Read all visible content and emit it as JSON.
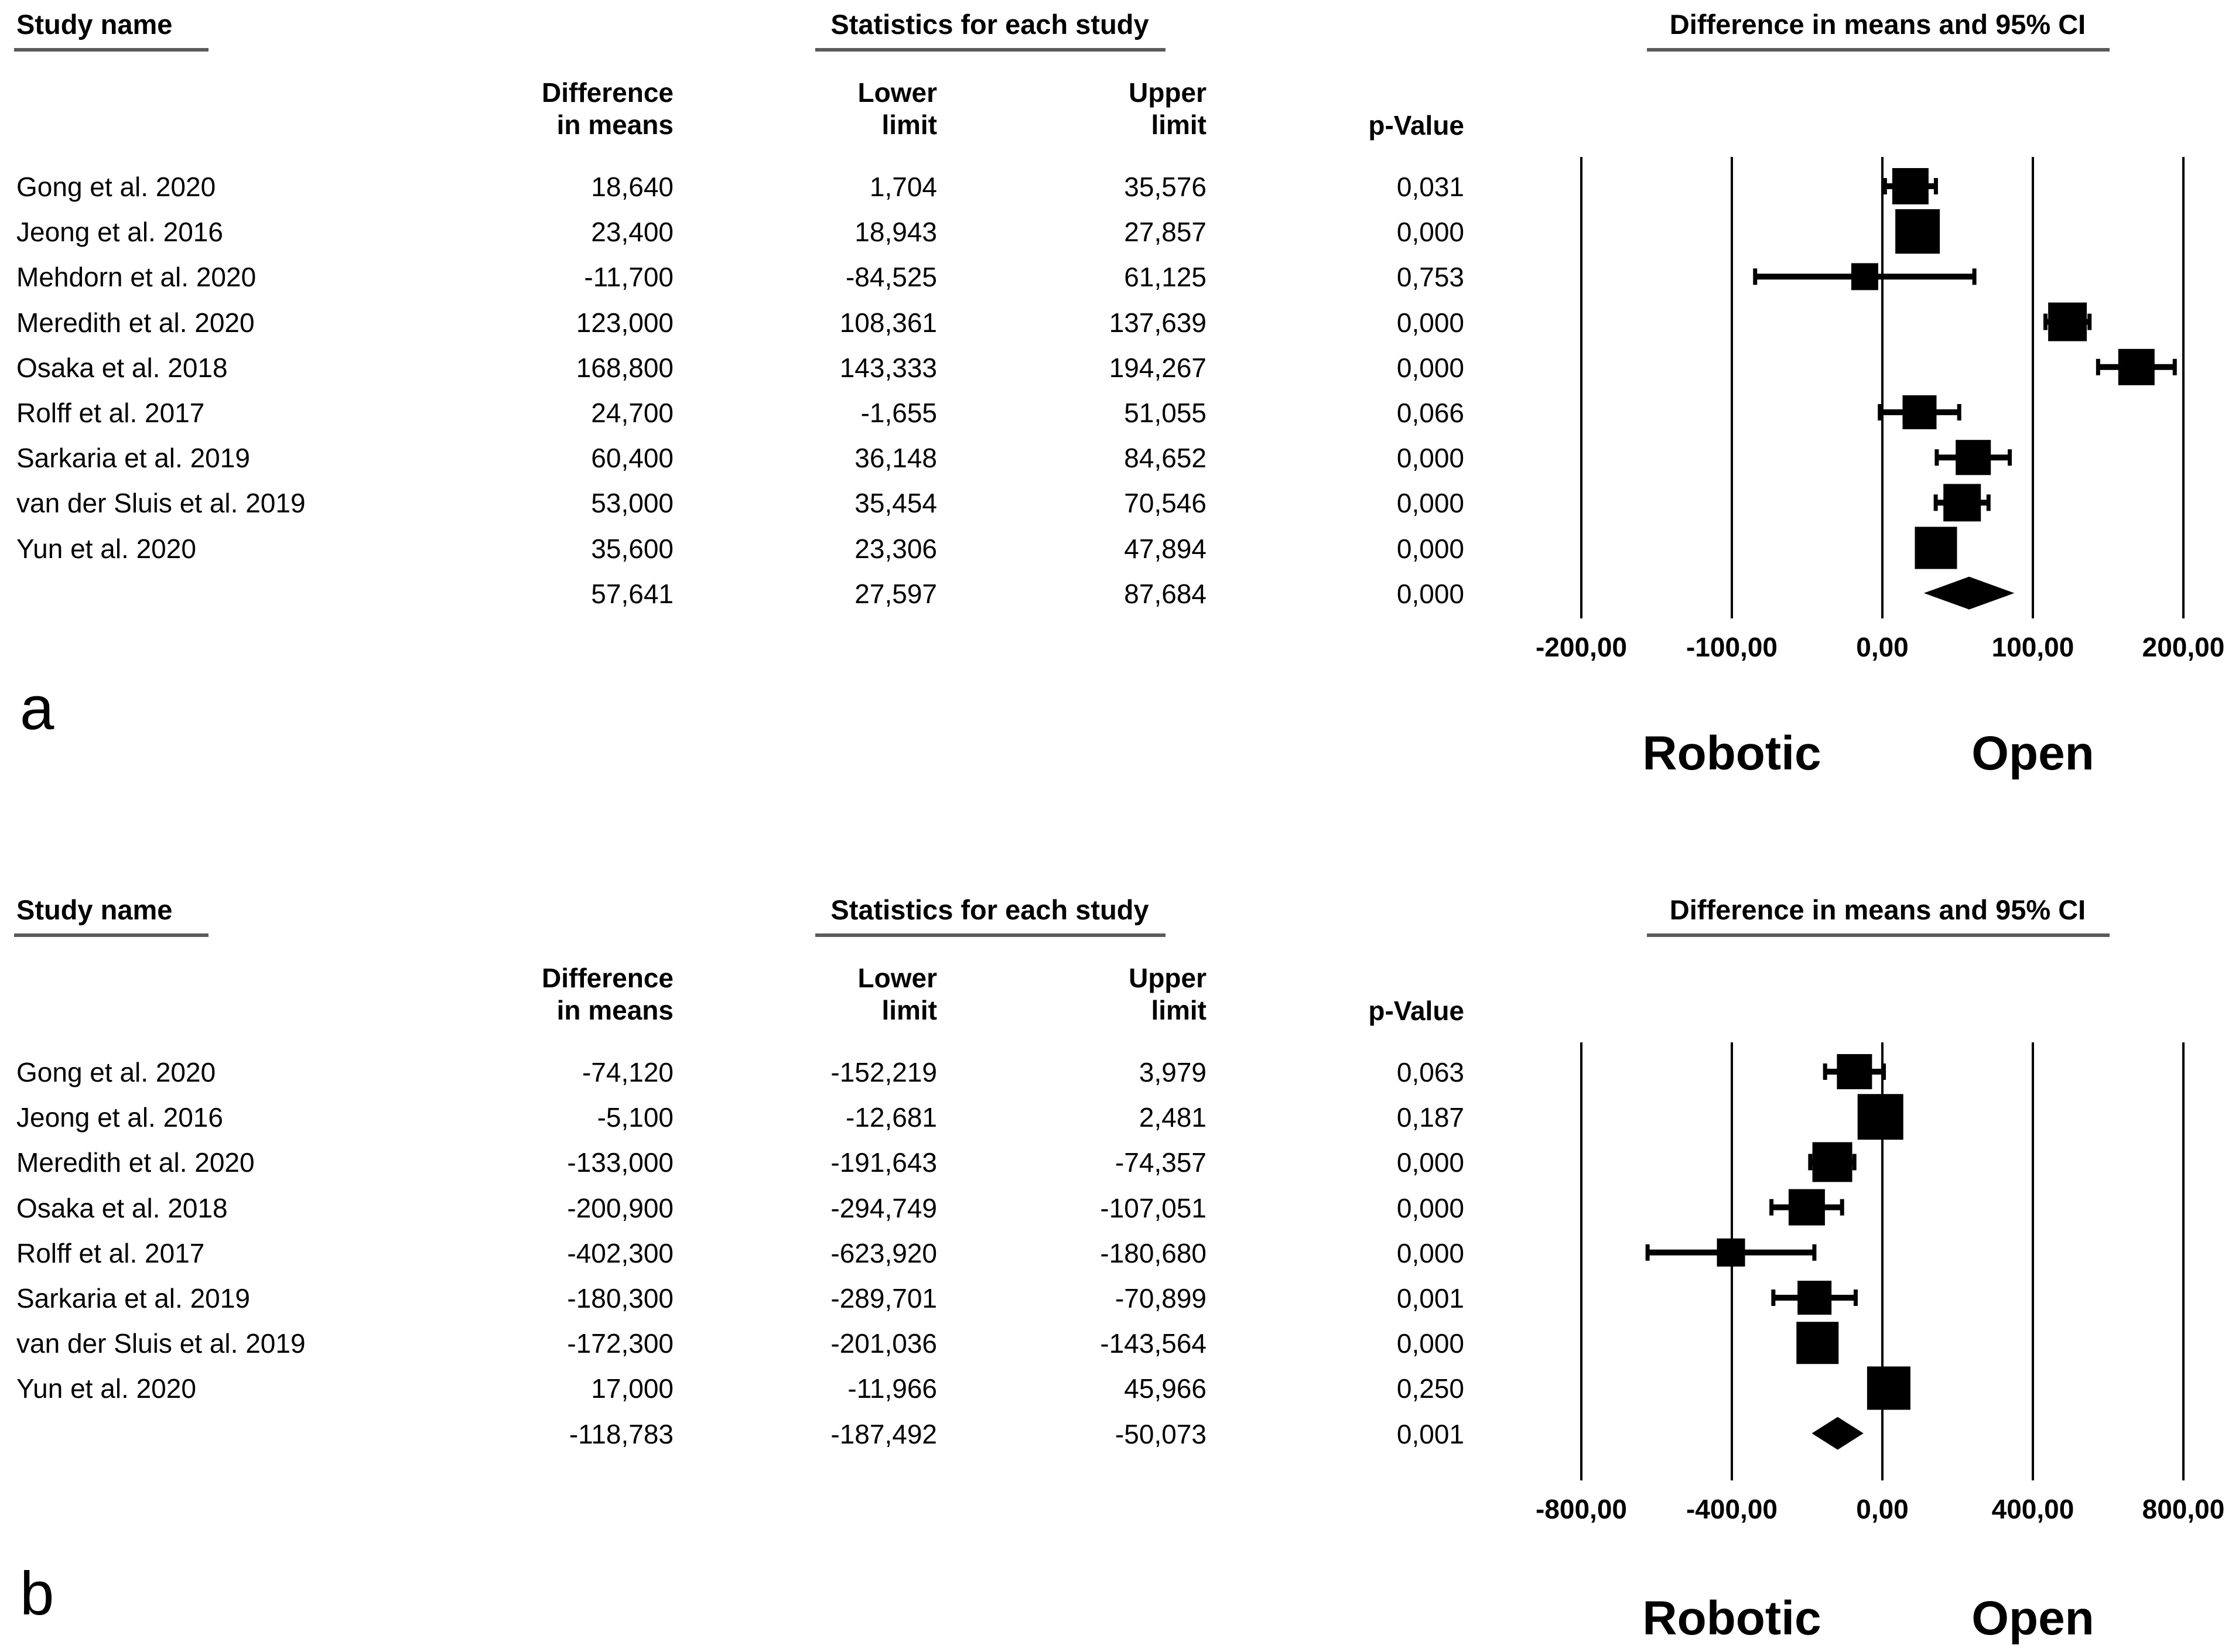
{
  "figure": {
    "background": "#ffffff",
    "text_color": "#000000",
    "underline_color": "#5a5a5a",
    "marker_color": "#000000"
  },
  "chart_data": [
    {
      "type": "forest",
      "panel_letter": "a",
      "title_study": "Study name",
      "title_stats": "Statistics for each study",
      "title_plot": "Difference in means and 95% CI",
      "col_headers": {
        "diff1": "Difference",
        "diff2": "in means",
        "low1": "Lower",
        "low2": "limit",
        "up1": "Upper",
        "up2": "limit",
        "p": "p-Value"
      },
      "axis": {
        "min": -200,
        "max": 200,
        "tick_values": [
          -200,
          -100,
          0,
          100,
          200
        ],
        "tick_labels": [
          "-200,00",
          "-100,00",
          "0,00",
          "100,00",
          "200,00"
        ]
      },
      "group_left": "Robotic",
      "group_right": "Open",
      "studies": [
        {
          "name": "Gong et al. 2020",
          "diff_label": "18,640",
          "lower_label": "1,704",
          "upper_label": "35,576",
          "p_label": "0,031",
          "diff": 18.64,
          "lower": 1.704,
          "upper": 35.576,
          "size": 62
        },
        {
          "name": "Jeong et al. 2016",
          "diff_label": "23,400",
          "lower_label": "18,943",
          "upper_label": "27,857",
          "p_label": "0,000",
          "diff": 23.4,
          "lower": 18.943,
          "upper": 27.857,
          "size": 76
        },
        {
          "name": "Mehdorn et al. 2020",
          "diff_label": "-11,700",
          "lower_label": "-84,525",
          "upper_label": "61,125",
          "p_label": "0,753",
          "diff": -11.7,
          "lower": -84.525,
          "upper": 61.125,
          "size": 46
        },
        {
          "name": "Meredith et al. 2020",
          "diff_label": "123,000",
          "lower_label": "108,361",
          "upper_label": "137,639",
          "p_label": "0,000",
          "diff": 123.0,
          "lower": 108.361,
          "upper": 137.639,
          "size": 66
        },
        {
          "name": "Osaka et al. 2018",
          "diff_label": "168,800",
          "lower_label": "143,333",
          "upper_label": "194,267",
          "p_label": "0,000",
          "diff": 168.8,
          "lower": 143.333,
          "upper": 194.267,
          "size": 62
        },
        {
          "name": "Rolff et al. 2017",
          "diff_label": "24,700",
          "lower_label": "-1,655",
          "upper_label": "51,055",
          "p_label": "0,066",
          "diff": 24.7,
          "lower": -1.655,
          "upper": 51.055,
          "size": 58
        },
        {
          "name": "Sarkaria et al. 2019",
          "diff_label": "60,400",
          "lower_label": "36,148",
          "upper_label": "84,652",
          "p_label": "0,000",
          "diff": 60.4,
          "lower": 36.148,
          "upper": 84.652,
          "size": 60
        },
        {
          "name": "van der Sluis et al. 2019",
          "diff_label": "53,000",
          "lower_label": "35,454",
          "upper_label": "70,546",
          "p_label": "0,000",
          "diff": 53.0,
          "lower": 35.454,
          "upper": 70.546,
          "size": 64
        },
        {
          "name": "Yun et al. 2020",
          "diff_label": "35,600",
          "lower_label": "23,306",
          "upper_label": "47,894",
          "p_label": "0,000",
          "diff": 35.6,
          "lower": 23.306,
          "upper": 47.894,
          "size": 72
        }
      ],
      "overall": {
        "diff_label": "57,641",
        "lower_label": "27,597",
        "upper_label": "87,684",
        "p_label": "0,000",
        "diff": 57.641,
        "lower": 27.597,
        "upper": 87.684
      }
    },
    {
      "type": "forest",
      "panel_letter": "b",
      "title_study": "Study name",
      "title_stats": "Statistics for each study",
      "title_plot": "Difference in means and 95% CI",
      "col_headers": {
        "diff1": "Difference",
        "diff2": "in means",
        "low1": "Lower",
        "low2": "limit",
        "up1": "Upper",
        "up2": "limit",
        "p": "p-Value"
      },
      "axis": {
        "min": -800,
        "max": 800,
        "tick_values": [
          -800,
          -400,
          0,
          400,
          800
        ],
        "tick_labels": [
          "-800,00",
          "-400,00",
          "0,00",
          "400,00",
          "800,00"
        ]
      },
      "group_left": "Robotic",
      "group_right": "Open",
      "studies": [
        {
          "name": "Gong et al. 2020",
          "diff_label": "-74,120",
          "lower_label": "-152,219",
          "upper_label": "3,979",
          "p_label": "0,063",
          "diff": -74.12,
          "lower": -152.219,
          "upper": 3.979,
          "size": 60
        },
        {
          "name": "Jeong et al. 2016",
          "diff_label": "-5,100",
          "lower_label": "-12,681",
          "upper_label": "2,481",
          "p_label": "0,187",
          "diff": -5.1,
          "lower": -12.681,
          "upper": 2.481,
          "size": 78
        },
        {
          "name": "Meredith et al. 2020",
          "diff_label": "-133,000",
          "lower_label": "-191,643",
          "upper_label": "-74,357",
          "p_label": "0,000",
          "diff": -133.0,
          "lower": -191.643,
          "upper": -74.357,
          "size": 68
        },
        {
          "name": "Osaka et al. 2018",
          "diff_label": "-200,900",
          "lower_label": "-294,749",
          "upper_label": "-107,051",
          "p_label": "0,000",
          "diff": -200.9,
          "lower": -294.749,
          "upper": -107.051,
          "size": 62
        },
        {
          "name": "Rolff et al. 2017",
          "diff_label": "-402,300",
          "lower_label": "-623,920",
          "upper_label": "-180,680",
          "p_label": "0,000",
          "diff": -402.3,
          "lower": -623.92,
          "upper": -180.68,
          "size": 48
        },
        {
          "name": "Sarkaria et al. 2019",
          "diff_label": "-180,300",
          "lower_label": "-289,701",
          "upper_label": "-70,899",
          "p_label": "0,001",
          "diff": -180.3,
          "lower": -289.701,
          "upper": -70.899,
          "size": 58
        },
        {
          "name": "van der Sluis et al. 2019",
          "diff_label": "-172,300",
          "lower_label": "-201,036",
          "upper_label": "-143,564",
          "p_label": "0,000",
          "diff": -172.3,
          "lower": -201.036,
          "upper": -143.564,
          "size": 72
        },
        {
          "name": "Yun et al. 2020",
          "diff_label": "17,000",
          "lower_label": "-11,966",
          "upper_label": "45,966",
          "p_label": "0,250",
          "diff": 17.0,
          "lower": -11.966,
          "upper": 45.966,
          "size": 74
        }
      ],
      "overall": {
        "diff_label": "-118,783",
        "lower_label": "-187,492",
        "upper_label": "-50,073",
        "p_label": "0,001",
        "diff": -118.783,
        "lower": -187.492,
        "upper": -50.073
      }
    }
  ]
}
